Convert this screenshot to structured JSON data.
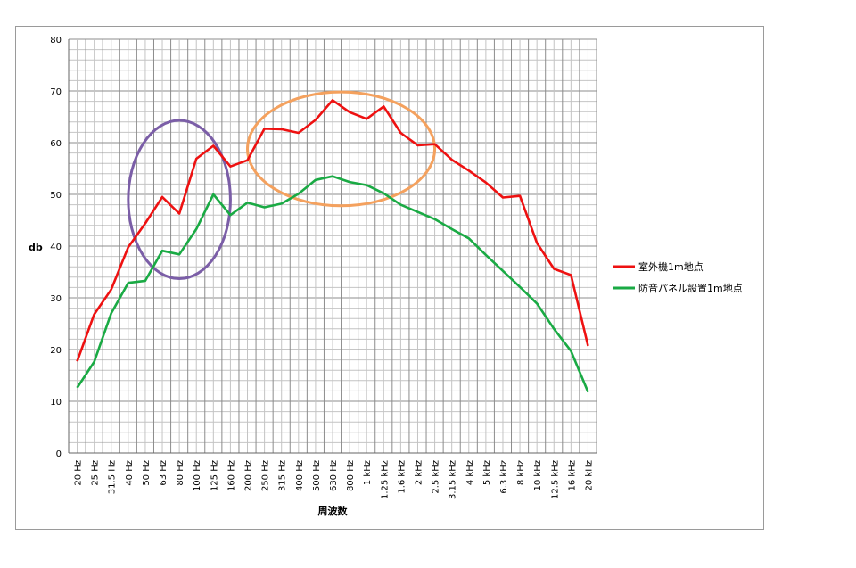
{
  "chart_data": {
    "type": "line",
    "xlabel": "周波数",
    "ylabel": "db",
    "ylim": [
      0,
      80
    ],
    "ytick_step": 10,
    "grid": true,
    "legend_position": "right",
    "categories": [
      "20 Hz",
      "25 Hz",
      "31.5 Hz",
      "40 Hz",
      "50 Hz",
      "63 Hz",
      "80 Hz",
      "100 Hz",
      "125 Hz",
      "160 Hz",
      "200 Hz",
      "250 Hz",
      "315 Hz",
      "400 Hz",
      "500 Hz",
      "630 Hz",
      "800 Hz",
      "1 kHz",
      "1.25 kHz",
      "1.6 kHz",
      "2 kHz",
      "2.5 kHz",
      "3.15 kHz",
      "4 kHz",
      "5 kHz",
      "6.3 kHz",
      "8 kHz",
      "10 kHz",
      "12.5 kHz",
      "16 kHz",
      "20 kHz"
    ],
    "series": [
      {
        "name": "室外機1m地点",
        "color": "#ee1111",
        "values": [
          17.7,
          26.8,
          31.6,
          39.8,
          44.4,
          49.5,
          46.3,
          56.9,
          59.4,
          55.4,
          56.6,
          62.7,
          62.6,
          61.9,
          64.4,
          68.2,
          65.9,
          64.6,
          67.0,
          61.9,
          59.5,
          59.7,
          56.7,
          54.6,
          52.3,
          49.4,
          49.7,
          40.6,
          35.6,
          34.4,
          20.7
        ]
      },
      {
        "name": "防音パネル設置1m地点",
        "color": "#1aaa44",
        "values": [
          12.6,
          17.6,
          27.0,
          32.9,
          33.3,
          39.1,
          38.4,
          43.3,
          50.0,
          46.0,
          48.4,
          47.5,
          48.2,
          50.1,
          52.8,
          53.5,
          52.4,
          51.8,
          50.2,
          48.0,
          46.6,
          45.2,
          43.3,
          41.5,
          38.3,
          35.2,
          32.1,
          28.9,
          24.0,
          19.7,
          11.8
        ]
      }
    ],
    "annotations": [
      {
        "shape": "ellipse",
        "color": "#7b5ea7",
        "x_range": [
          "40 Hz",
          "160 Hz"
        ],
        "y_range": [
          33.7,
          64.3
        ]
      },
      {
        "shape": "ellipse",
        "color": "#f4a15e",
        "x_range": [
          "200 Hz",
          "2.5 kHz"
        ],
        "y_range": [
          47.8,
          69.8
        ]
      }
    ]
  }
}
